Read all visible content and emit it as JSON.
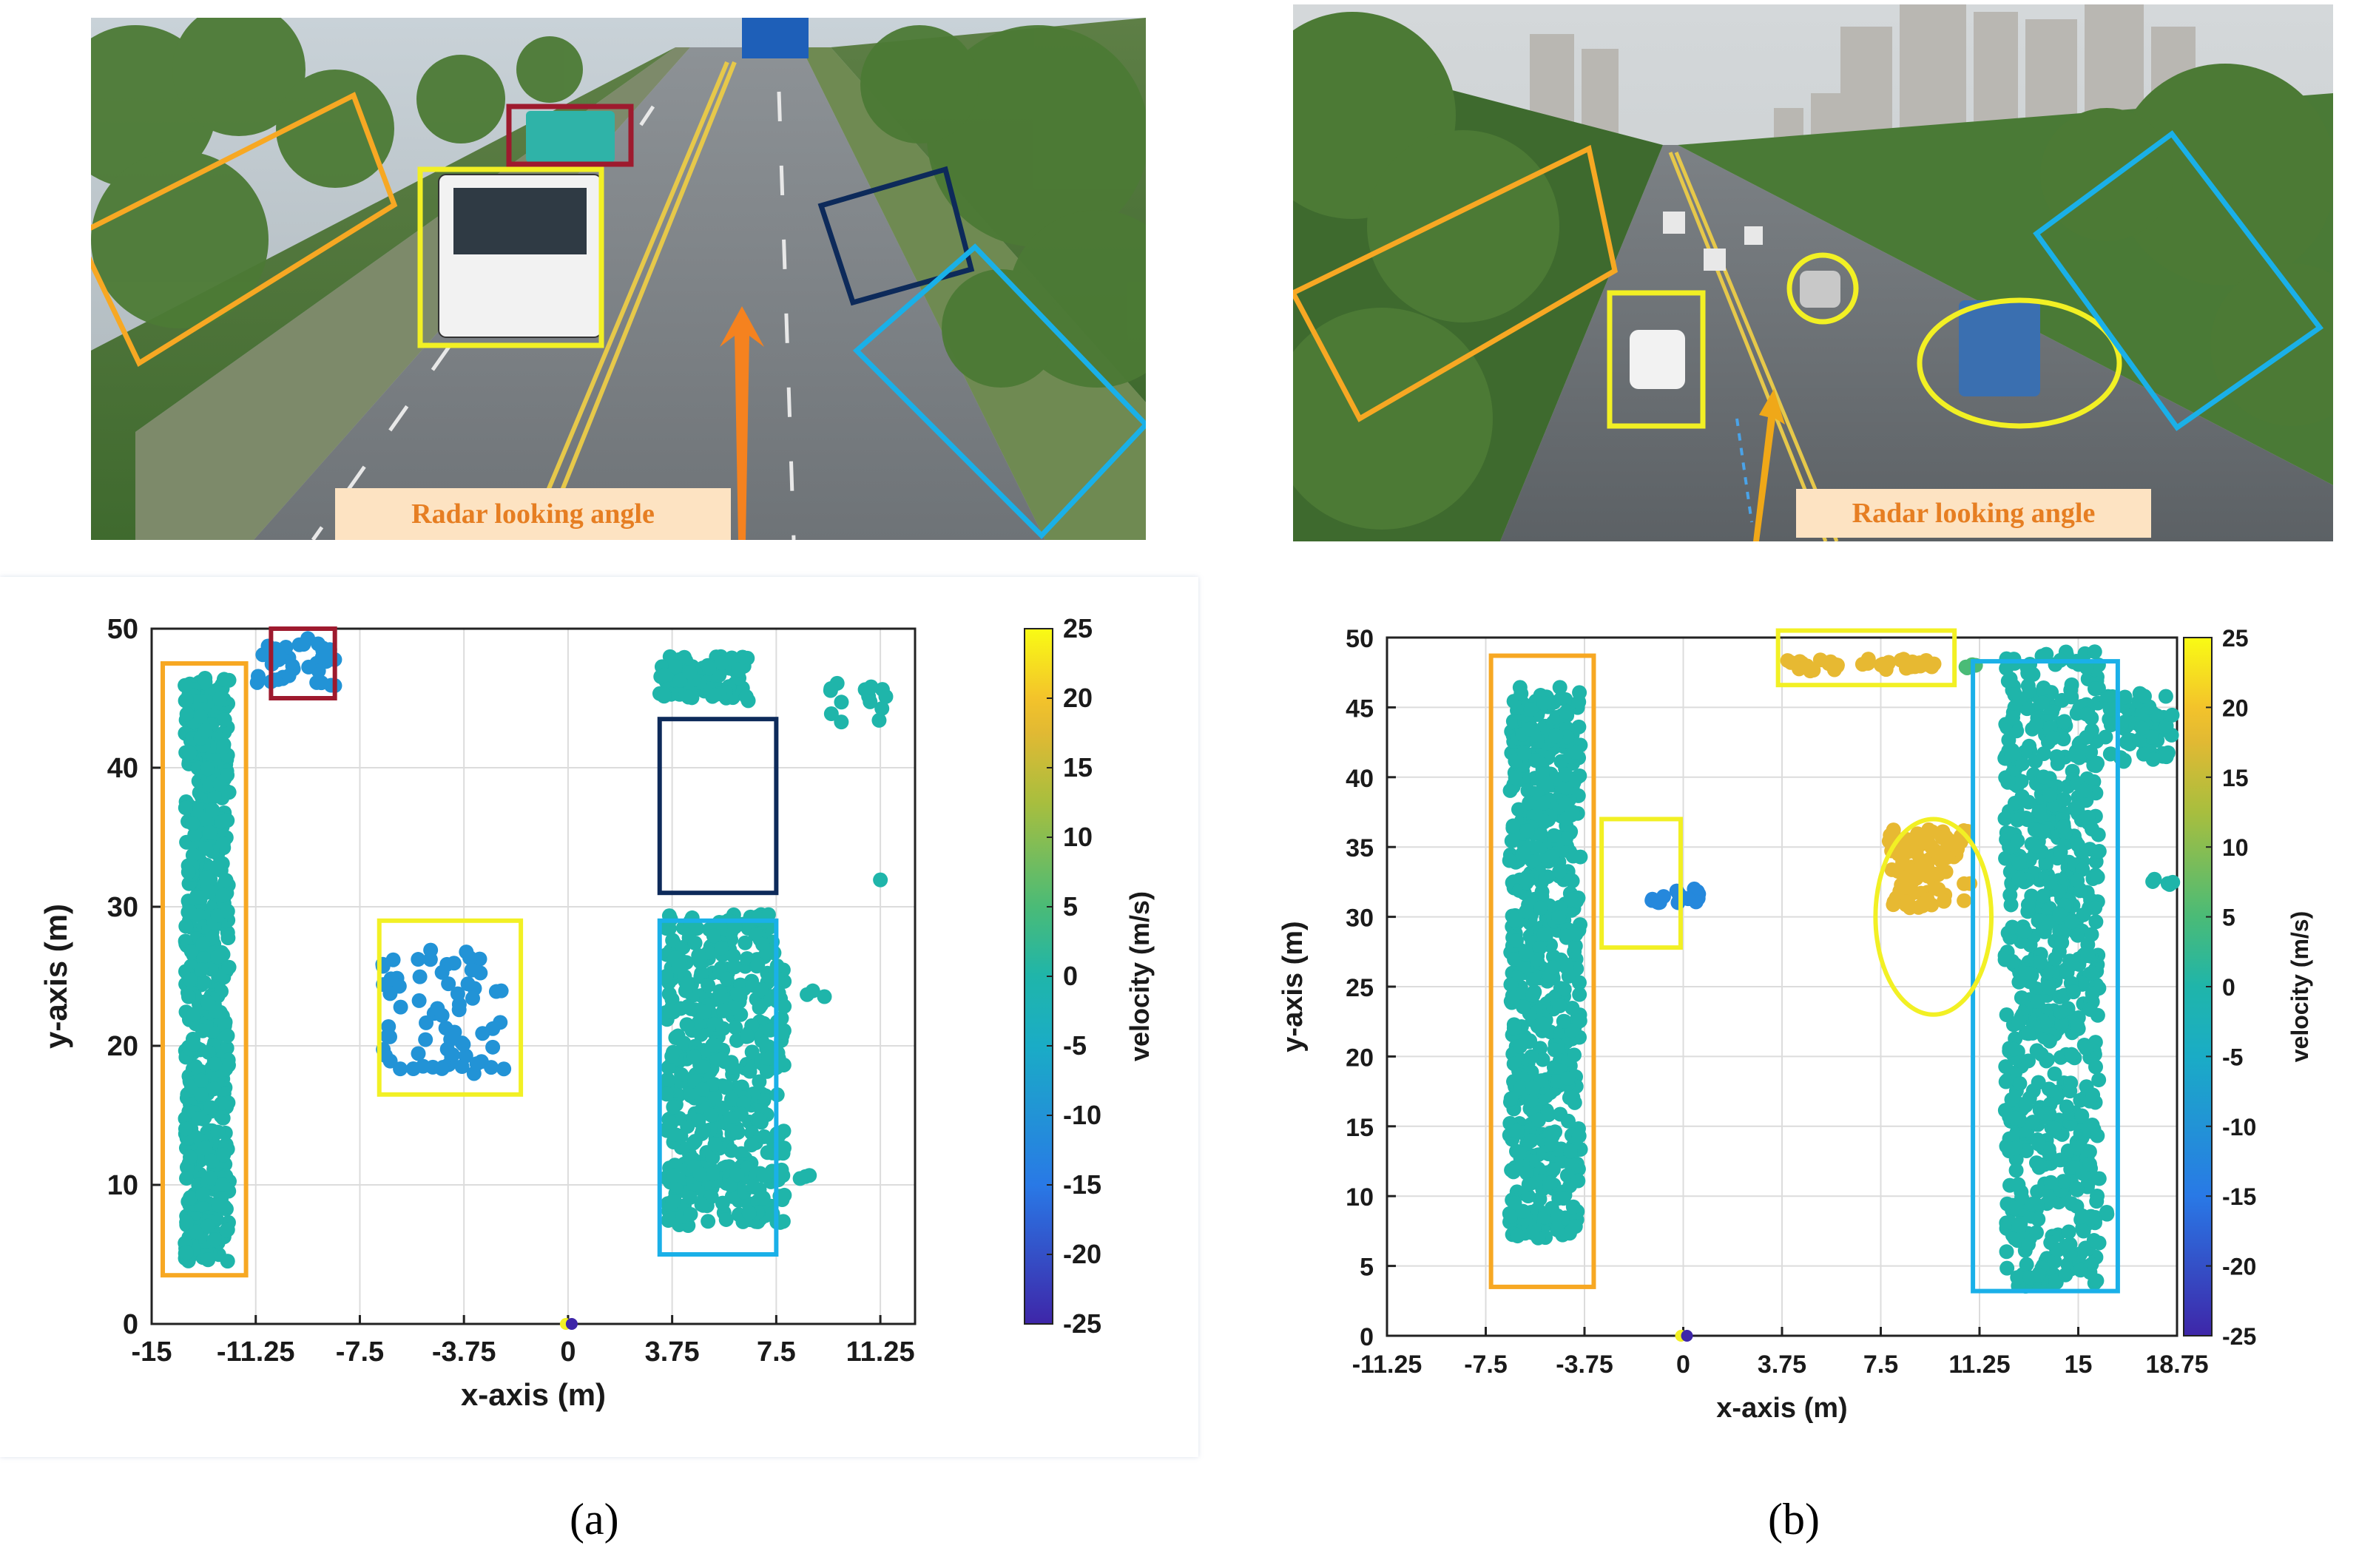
{
  "panels": [
    {
      "id": "a",
      "caption": "(a)",
      "photo_label": "Radar looking angle",
      "photo_colors": {
        "arrow": "#f5821f",
        "label_bg": "#fde3c2",
        "label_text": "#e67e22"
      }
    },
    {
      "id": "b",
      "caption": "(b)",
      "photo_label": "Radar looking angle",
      "photo_colors": {
        "arrow": "#f0a818",
        "label_bg": "#fde3c2",
        "label_text": "#e67e22"
      }
    }
  ],
  "chart_data": [
    {
      "type": "scatter",
      "panel": "a",
      "xlabel": "x-axis (m)",
      "ylabel": "y-axis (m)",
      "xlim": [
        -15,
        12.5
      ],
      "ylim": [
        0,
        50
      ],
      "xticks": [
        -15,
        -11.25,
        -7.5,
        -3.75,
        0,
        3.75,
        7.5,
        11.25
      ],
      "xtick_labels": [
        "-15",
        "-11.25",
        "-7.5",
        "-3.75",
        "0",
        "3.75",
        "7.5",
        "11.25"
      ],
      "yticks": [
        0,
        10,
        20,
        30,
        40,
        50
      ],
      "ytick_labels": [
        "0",
        "10",
        "20",
        "30",
        "40",
        "50"
      ],
      "grid": true,
      "colorbar": {
        "label": "velocity (m/s)",
        "min": -25,
        "max": 25,
        "ticks": [
          25,
          20,
          15,
          10,
          5,
          0,
          -5,
          -10,
          -15,
          -20,
          -25
        ],
        "tick_labels": [
          "25",
          "20",
          "15",
          "10",
          "5",
          "0",
          "-5",
          "-10",
          "-15",
          "-20",
          "-25"
        ]
      },
      "clusters": [
        {
          "name": "left-greenbelt",
          "x": [
            -13.8,
            -12.2
          ],
          "y": [
            4.5,
            46.5
          ],
          "velocity": 0,
          "points": 600,
          "seed": 11
        },
        {
          "name": "bus-far",
          "x": [
            -11.2,
            -8.3
          ],
          "y": [
            45.8,
            49.3
          ],
          "velocity": -10,
          "points": 40,
          "seed": 12
        },
        {
          "name": "bus-near",
          "x": [
            -6.7,
            -2.2
          ],
          "y": [
            17.5,
            27
          ],
          "velocity": -10,
          "points": 70,
          "seed": 13
        },
        {
          "name": "right-greenbelt-top",
          "x": [
            3.3,
            6.5
          ],
          "y": [
            44.8,
            48
          ],
          "velocity": 0,
          "points": 80,
          "seed": 14
        },
        {
          "name": "right-greenbelt",
          "x": [
            3.5,
            7.8
          ],
          "y": [
            7,
            29.5
          ],
          "velocity": 0,
          "points": 500,
          "seed": 15
        },
        {
          "name": "far-right-trees",
          "x": [
            9.3,
            11.5
          ],
          "y": [
            43,
            46.2
          ],
          "velocity": 0,
          "points": 14,
          "seed": 16
        },
        {
          "name": "stray-1",
          "x": [
            8.5,
            9.3
          ],
          "y": [
            23.5,
            24
          ],
          "velocity": 0,
          "points": 3,
          "seed": 17
        },
        {
          "name": "stray-2",
          "x": [
            11.1,
            11.3
          ],
          "y": [
            31.5,
            32
          ],
          "velocity": 0,
          "points": 1,
          "seed": 18
        },
        {
          "name": "stray-3",
          "x": [
            8.2,
            8.8
          ],
          "y": [
            10.2,
            10.8
          ],
          "velocity": 0,
          "points": 3,
          "seed": 19
        }
      ],
      "radar_origin": [
        0,
        0
      ],
      "boxes": [
        {
          "name": "orange-greenbelt-box",
          "color": "#f7a823",
          "x": [
            -14.6,
            -11.6
          ],
          "y": [
            3.5,
            47.5
          ]
        },
        {
          "name": "darkred-bus-box",
          "color": "#9e1a2e",
          "x": [
            -10.7,
            -8.4
          ],
          "y": [
            45,
            50
          ]
        },
        {
          "name": "yellow-bus-box",
          "color": "#f2f024",
          "x": [
            -6.8,
            -1.7
          ],
          "y": [
            16.5,
            29
          ]
        },
        {
          "name": "navy-empty-box",
          "color": "#0d2a5a",
          "x": [
            3.3,
            7.5
          ],
          "y": [
            31,
            43.5
          ]
        },
        {
          "name": "blue-greenbelt-box",
          "color": "#1ab0e8",
          "x": [
            3.3,
            7.5
          ],
          "y": [
            5,
            29
          ]
        }
      ]
    },
    {
      "type": "scatter",
      "panel": "b",
      "xlabel": "x-axis (m)",
      "ylabel": "y-axis (m)",
      "xlim": [
        -11.25,
        18.75
      ],
      "ylim": [
        0,
        50
      ],
      "xticks": [
        -11.25,
        -7.5,
        -3.75,
        0,
        3.75,
        7.5,
        11.25,
        15,
        18.75
      ],
      "xtick_labels": [
        "-11.25",
        "-7.5",
        "-3.75",
        "0",
        "3.75",
        "7.5",
        "11.25",
        "15",
        "18.75"
      ],
      "yticks": [
        0,
        5,
        10,
        15,
        20,
        25,
        30,
        35,
        40,
        45,
        50
      ],
      "ytick_labels": [
        "0",
        "5",
        "10",
        "15",
        "20",
        "25",
        "30",
        "35",
        "40",
        "45",
        "50"
      ],
      "grid": true,
      "colorbar": {
        "label": "velocity (m/s)",
        "min": -25,
        "max": 25,
        "ticks": [
          25,
          20,
          15,
          10,
          5,
          0,
          -5,
          -10,
          -15,
          -20,
          -25
        ],
        "tick_labels": [
          "25",
          "20",
          "15",
          "10",
          "5",
          "0",
          "-5",
          "-10",
          "-15",
          "-20",
          "-25"
        ]
      },
      "clusters": [
        {
          "name": "left-greenbelt",
          "x": [
            -6.6,
            -3.9
          ],
          "y": [
            7,
            46.5
          ],
          "velocity": 0,
          "points": 650,
          "seed": 21
        },
        {
          "name": "white-car",
          "x": [
            -1.2,
            1
          ],
          "y": [
            31,
            32
          ],
          "velocity": -12,
          "points": 16,
          "seed": 22
        },
        {
          "name": "far-cars",
          "x": [
            3.8,
            9.6
          ],
          "y": [
            47.6,
            48.5
          ],
          "velocity": 18,
          "points": 40,
          "seed": 23
        },
        {
          "name": "far-green",
          "x": [
            10.2,
            11.2
          ],
          "y": [
            47.8,
            48.2
          ],
          "velocity": 5,
          "points": 4,
          "seed": 24
        },
        {
          "name": "truck-and-car",
          "x": [
            7.8,
            10.9
          ],
          "y": [
            30.5,
            36.3
          ],
          "velocity": 18,
          "points": 90,
          "seed": 25
        },
        {
          "name": "right-greenbelt",
          "x": [
            12.2,
            15.8
          ],
          "y": [
            3.5,
            49
          ],
          "velocity": 0,
          "points": 700,
          "seed": 26
        },
        {
          "name": "far-right-trees",
          "x": [
            16,
            18.6
          ],
          "y": [
            41,
            46
          ],
          "velocity": 0,
          "points": 70,
          "seed": 27
        },
        {
          "name": "stray-right",
          "x": [
            17.8,
            18.6
          ],
          "y": [
            32.2,
            32.8
          ],
          "velocity": 0,
          "points": 5,
          "seed": 28
        },
        {
          "name": "stray-mid",
          "x": [
            15.7,
            16.1
          ],
          "y": [
            8.6,
            9
          ],
          "velocity": 0,
          "points": 2,
          "seed": 29
        }
      ],
      "radar_origin": [
        0,
        0
      ],
      "boxes": [
        {
          "name": "orange-greenbelt-box",
          "color": "#f7a823",
          "x": [
            -7.3,
            -3.4
          ],
          "y": [
            3.5,
            48.7
          ]
        },
        {
          "name": "yellow-car-box",
          "color": "#f2f024",
          "x": [
            -3.1,
            -0.1
          ],
          "y": [
            27.8,
            37
          ]
        },
        {
          "name": "yellow-far-box",
          "color": "#f2f024",
          "x": [
            3.6,
            10.3
          ],
          "y": [
            46.6,
            50.5
          ]
        },
        {
          "name": "blue-greenbelt-box",
          "color": "#1ab0e8",
          "x": [
            11,
            16.5
          ],
          "y": [
            3.2,
            48.3
          ]
        }
      ],
      "ellipses": [
        {
          "name": "yellow-truck-ellipse",
          "color": "#f2f024",
          "cx": 9.5,
          "cy": 30,
          "rx": 2.2,
          "ry": 7
        }
      ]
    }
  ]
}
